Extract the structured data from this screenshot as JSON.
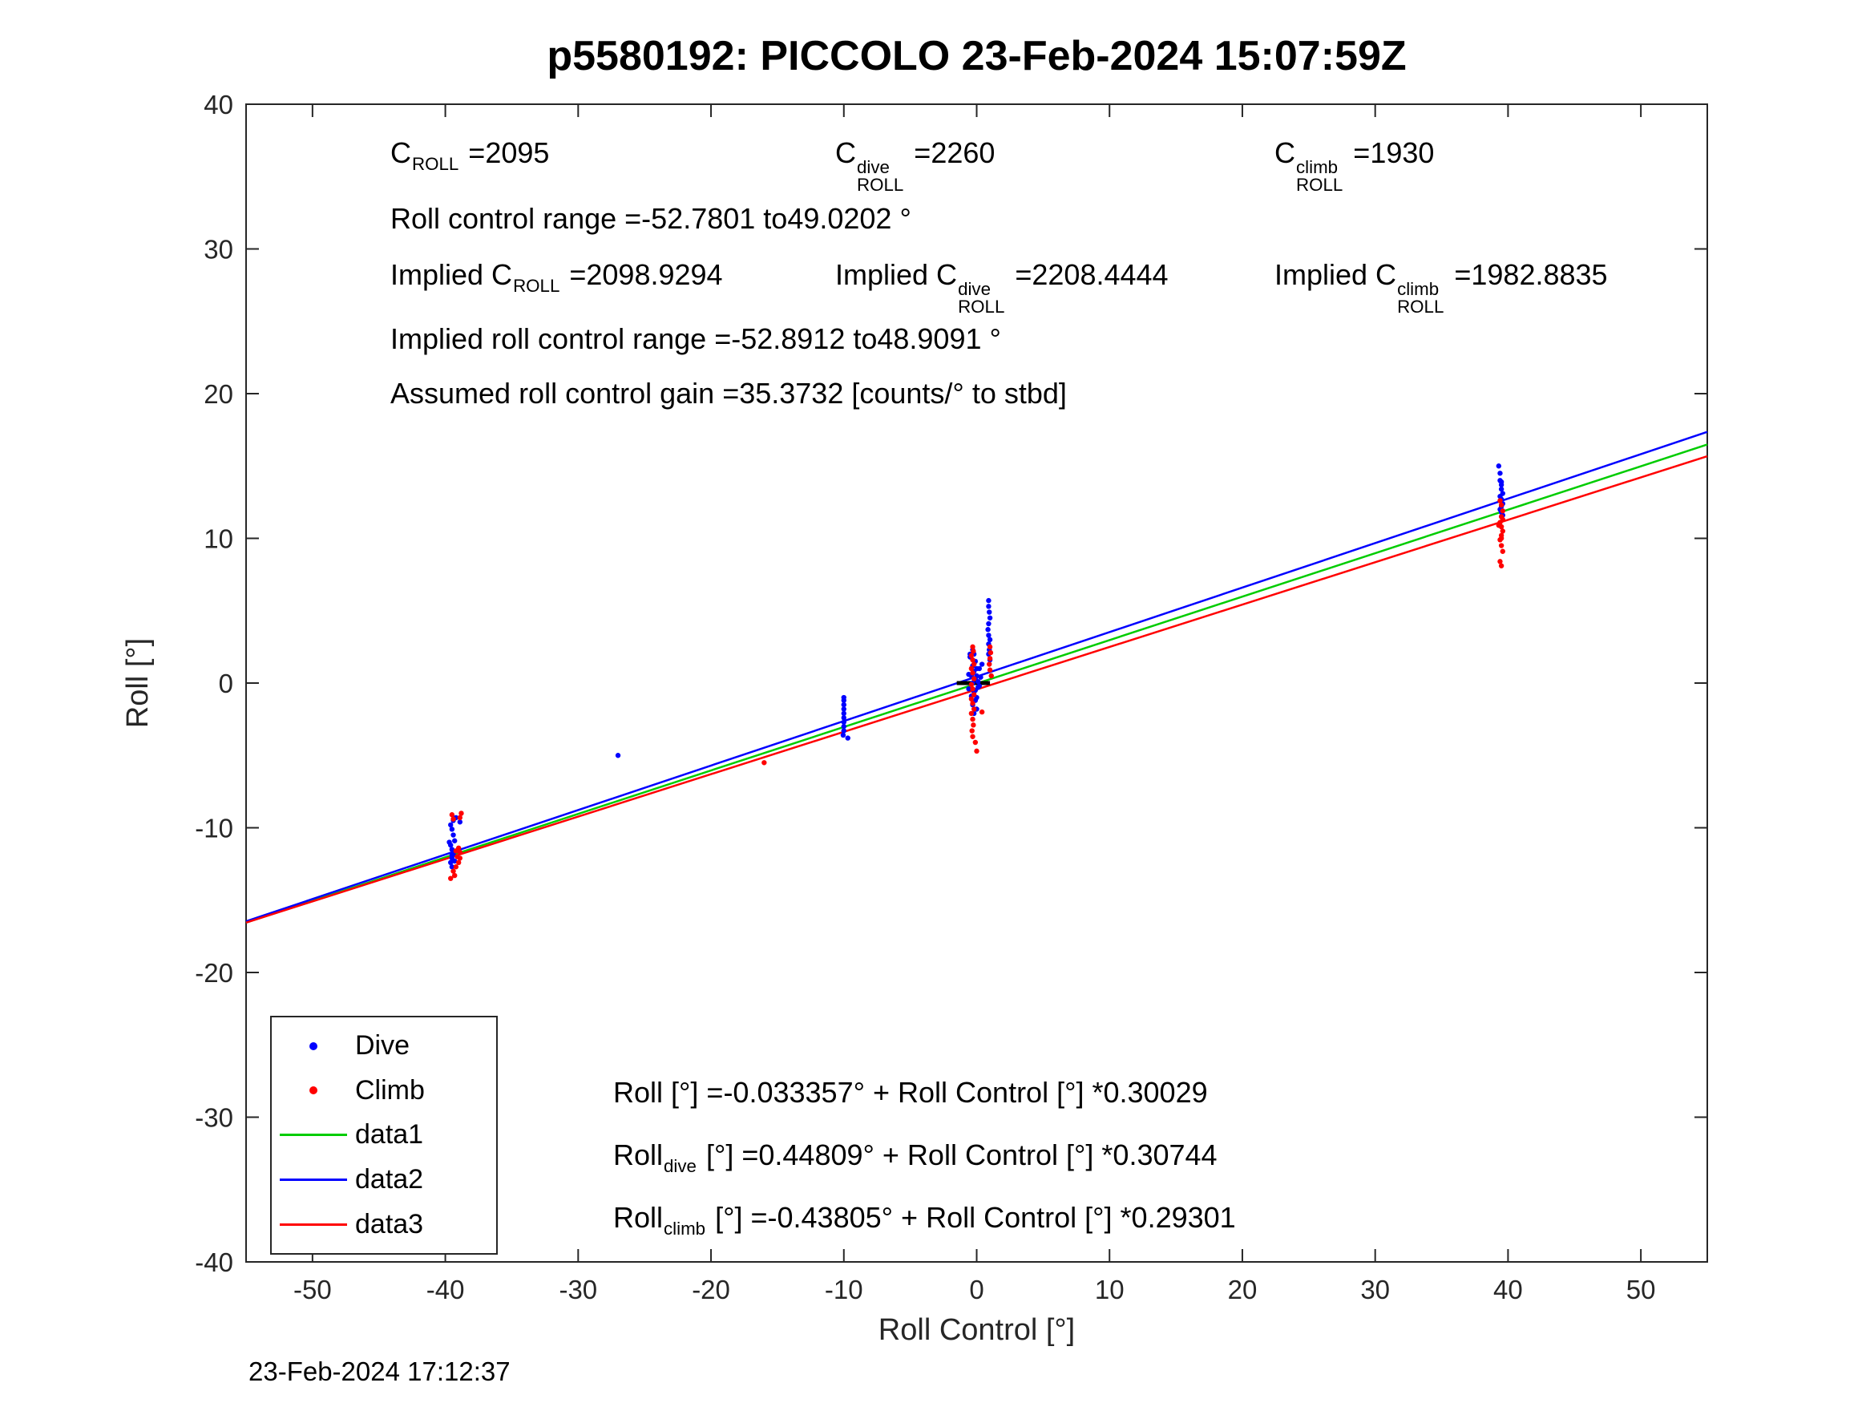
{
  "timestamp": "23-Feb-2024 17:12:37",
  "colors": {
    "dive": "#0000ff",
    "climb": "#ff0000",
    "data1": "#00cc00",
    "data2": "#0000ff",
    "data3": "#ff0000",
    "axis": "#262626",
    "zero_bar": "#000000"
  },
  "annotations": {
    "row1": {
      "c": {
        "base": "C",
        "sub": "ROLL",
        "val": " =2095"
      },
      "c_dive": {
        "base": "C",
        "sup": "dive",
        "sub": "ROLL",
        "val": " =2260"
      },
      "c_climb": {
        "base": "C",
        "sup": "climb",
        "sub": "ROLL",
        "val": " =1930"
      }
    },
    "row2": "Roll control range =-52.7801 to49.0202 °",
    "row3": {
      "c": {
        "base": "Implied C",
        "sub": "ROLL",
        "val": " =2098.9294"
      },
      "c_dive": {
        "base": "Implied C",
        "sup": "dive",
        "sub": "ROLL",
        "val": " =2208.4444"
      },
      "c_climb": {
        "base": "Implied C",
        "sup": "climb",
        "sub": "ROLL",
        "val": " =1982.8835"
      }
    },
    "row4": "Implied roll control range =-52.8912 to48.9091 °",
    "row5": "Assumed roll control gain =35.3732 [counts/° to stbd]"
  },
  "equations": {
    "all": {
      "base": "Roll",
      "val": " [°] =-0.033357° + Roll Control [°] *0.30029"
    },
    "dive": {
      "base": "Roll",
      "sub": "dive",
      "val": " [°] =0.44809° + Roll Control [°] *0.30744"
    },
    "climb": {
      "base": "Roll",
      "sub": "climb",
      "val": " [°] =-0.43805° + Roll Control [°] *0.29301"
    }
  },
  "legend": {
    "items": [
      {
        "label": "Dive",
        "marker": "dot",
        "color": "#0000ff"
      },
      {
        "label": "Climb",
        "marker": "dot",
        "color": "#ff0000"
      },
      {
        "label": "data1",
        "marker": "line",
        "color": "#00cc00"
      },
      {
        "label": "data2",
        "marker": "line",
        "color": "#0000ff"
      },
      {
        "label": "data3",
        "marker": "line",
        "color": "#ff0000"
      }
    ]
  },
  "chart_data": {
    "type": "scatter",
    "title": "p5580192: PICCOLO 23-Feb-2024 15:07:59Z",
    "xlabel": "Roll Control [°]",
    "ylabel": "Roll [°]",
    "xlim": [
      -55,
      55
    ],
    "ylim": [
      -40,
      40
    ],
    "xticks": [
      -50,
      -40,
      -30,
      -20,
      -10,
      0,
      10,
      20,
      30,
      40,
      50
    ],
    "yticks": [
      -40,
      -30,
      -20,
      -10,
      0,
      10,
      20,
      30,
      40
    ],
    "grid": false,
    "legend_position": "southwest",
    "series": [
      {
        "name": "Dive",
        "type": "scatter",
        "color": "#0000ff",
        "points": [
          [
            -39.6,
            -11.2
          ],
          [
            -39.5,
            -11.5
          ],
          [
            -39.4,
            -11.8
          ],
          [
            -39.5,
            -12.1
          ],
          [
            -39.6,
            -12.4
          ],
          [
            -39.5,
            -12.7
          ],
          [
            -39.3,
            -10.9
          ],
          [
            -39.4,
            -10.5
          ],
          [
            -39.5,
            -10.1
          ],
          [
            -39.6,
            -9.8
          ],
          [
            -39.4,
            -9.5
          ],
          [
            -39.2,
            -9.3
          ],
          [
            -38.9,
            -9.6
          ],
          [
            -39.7,
            -11.0
          ],
          [
            -39.5,
            -11.9
          ],
          [
            -39.3,
            -12.3
          ],
          [
            -27,
            -5.0
          ],
          [
            -10,
            -1.0
          ],
          [
            -10,
            -1.2
          ],
          [
            -10,
            -1.5
          ],
          [
            -10,
            -1.8
          ],
          [
            -10,
            -2.1
          ],
          [
            -10,
            -2.4
          ],
          [
            -10,
            -2.7
          ],
          [
            -10,
            -3.0
          ],
          [
            -10,
            -3.3
          ],
          [
            -10.05,
            -3.6
          ],
          [
            -9.7,
            -3.8
          ],
          [
            0.9,
            5.7
          ],
          [
            0.9,
            5.3
          ],
          [
            0.95,
            4.9
          ],
          [
            1.0,
            4.5
          ],
          [
            0.9,
            4.1
          ],
          [
            0.85,
            3.7
          ],
          [
            0.9,
            3.3
          ],
          [
            1.0,
            3.0
          ],
          [
            0.9,
            2.7
          ],
          [
            0.95,
            2.3
          ],
          [
            0.9,
            2.0
          ],
          [
            1.0,
            1.6
          ],
          [
            -0.3,
            2.3
          ],
          [
            -0.2,
            2.0
          ],
          [
            -0.5,
            1.8
          ],
          [
            -0.1,
            1.5
          ],
          [
            -0.3,
            1.2
          ],
          [
            0.0,
            1.0
          ],
          [
            -0.2,
            0.8
          ],
          [
            -0.4,
            0.5
          ],
          [
            -0.1,
            0.3
          ],
          [
            -0.3,
            0.0
          ],
          [
            0.1,
            -0.3
          ],
          [
            -0.2,
            -0.6
          ],
          [
            -0.4,
            -0.9
          ],
          [
            -0.1,
            -1.2
          ],
          [
            -0.3,
            -1.5
          ],
          [
            0.0,
            -1.8
          ],
          [
            -0.2,
            -2.1
          ],
          [
            0.2,
            1.0
          ],
          [
            0.3,
            0.4
          ],
          [
            0.2,
            -0.2
          ],
          [
            0.4,
            1.3
          ],
          [
            -0.6,
            0.6
          ],
          [
            -0.6,
            -0.4
          ],
          [
            -0.5,
            2.0
          ],
          [
            0.0,
            0.5
          ],
          [
            0.1,
            0.1
          ],
          [
            -0.1,
            -0.5
          ],
          [
            0.0,
            -1.0
          ],
          [
            39.3,
            15.0
          ],
          [
            39.4,
            14.5
          ],
          [
            39.4,
            14.0
          ],
          [
            39.5,
            13.9
          ],
          [
            39.5,
            13.7
          ],
          [
            39.5,
            13.4
          ],
          [
            39.6,
            13.1
          ],
          [
            39.4,
            12.9
          ],
          [
            39.5,
            12.7
          ],
          [
            39.6,
            12.4
          ],
          [
            39.5,
            12.2
          ],
          [
            39.4,
            12.0
          ],
          [
            39.5,
            11.8
          ],
          [
            39.6,
            11.6
          ]
        ]
      },
      {
        "name": "Climb",
        "type": "scatter",
        "color": "#ff0000",
        "points": [
          [
            -39.3,
            -13.3
          ],
          [
            -39.4,
            -13.0
          ],
          [
            -39.2,
            -12.7
          ],
          [
            -39.0,
            -12.4
          ],
          [
            -39.1,
            -12.0
          ],
          [
            -38.9,
            -11.7
          ],
          [
            -39.0,
            -11.4
          ],
          [
            -38.8,
            -9.0
          ],
          [
            -38.9,
            -9.3
          ],
          [
            -39.6,
            -13.5
          ],
          [
            -39.2,
            -11.6
          ],
          [
            -38.9,
            -12.1
          ],
          [
            -39.5,
            -9.1
          ],
          [
            -39.4,
            -9.4
          ],
          [
            -16,
            -5.5
          ],
          [
            -0.3,
            2.5
          ],
          [
            -0.25,
            2.2
          ],
          [
            -0.4,
            1.9
          ],
          [
            -0.3,
            1.6
          ],
          [
            -0.2,
            1.3
          ],
          [
            -0.4,
            1.0
          ],
          [
            -0.3,
            0.7
          ],
          [
            -0.2,
            0.3
          ],
          [
            -0.4,
            -0.1
          ],
          [
            -0.3,
            -0.4
          ],
          [
            -0.2,
            -0.8
          ],
          [
            -0.4,
            -1.1
          ],
          [
            -0.3,
            -1.4
          ],
          [
            -0.2,
            -1.8
          ],
          [
            -0.4,
            -2.1
          ],
          [
            -0.3,
            -2.5
          ],
          [
            -0.25,
            -2.9
          ],
          [
            -0.35,
            -3.3
          ],
          [
            -0.3,
            -3.7
          ],
          [
            -0.1,
            -4.1
          ],
          [
            0.0,
            -4.7
          ],
          [
            1.0,
            2.5
          ],
          [
            1.05,
            2.1
          ],
          [
            1.0,
            1.7
          ],
          [
            0.95,
            1.3
          ],
          [
            1.0,
            0.9
          ],
          [
            1.1,
            0.5
          ],
          [
            0.4,
            -2.0
          ],
          [
            39.4,
            12.6
          ],
          [
            39.5,
            12.3
          ],
          [
            39.6,
            11.9
          ],
          [
            39.5,
            11.5
          ],
          [
            39.4,
            11.1
          ],
          [
            39.5,
            10.8
          ],
          [
            39.6,
            10.5
          ],
          [
            39.5,
            10.2
          ],
          [
            39.4,
            9.9
          ],
          [
            39.5,
            9.5
          ],
          [
            39.6,
            9.1
          ],
          [
            39.4,
            8.4
          ],
          [
            39.5,
            8.1
          ],
          [
            39.3,
            10.9
          ],
          [
            39.6,
            11.3
          ],
          [
            39.5,
            10.0
          ]
        ]
      },
      {
        "name": "data1",
        "type": "fitline",
        "color": "#00cc00",
        "intercept": -0.033357,
        "slope": 0.30029
      },
      {
        "name": "data2",
        "type": "fitline",
        "color": "#0000ff",
        "intercept": 0.44809,
        "slope": 0.30744
      },
      {
        "name": "data3",
        "type": "fitline",
        "color": "#ff0000",
        "intercept": -0.43805,
        "slope": 0.29301
      }
    ],
    "zero_bar": {
      "y": 0,
      "x1": -1.5,
      "x2": 1.0,
      "color": "#000000"
    }
  }
}
